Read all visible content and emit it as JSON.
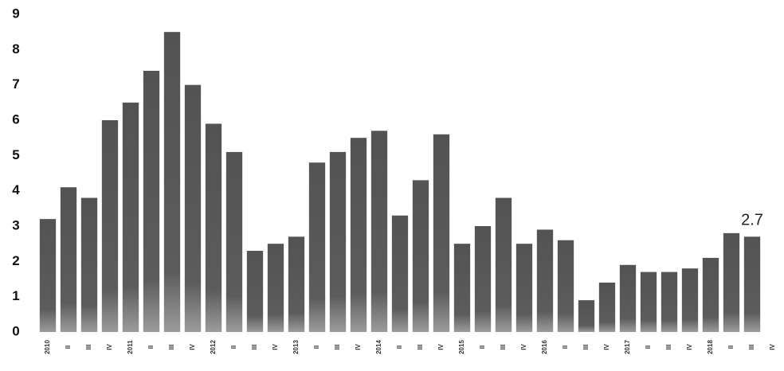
{
  "chart_data": {
    "type": "bar",
    "categories": [
      "2010",
      "II",
      "III",
      "IV",
      "2011",
      "II",
      "III",
      "IV",
      "2012",
      "II",
      "III",
      "IV",
      "2013",
      "II",
      "III",
      "IV",
      "2014",
      "II",
      "III",
      "IV",
      "2015",
      "II",
      "III",
      "IV",
      "2016",
      "II",
      "III",
      "IV",
      "2017",
      "II",
      "III",
      "IV",
      "2018",
      "II",
      "III",
      "IV"
    ],
    "values": [
      3.2,
      4.1,
      3.8,
      6.0,
      6.5,
      7.4,
      8.5,
      7.0,
      5.9,
      5.1,
      2.3,
      2.5,
      2.7,
      4.8,
      5.1,
      5.5,
      5.7,
      3.3,
      4.3,
      5.6,
      2.5,
      3.0,
      3.8,
      2.5,
      2.9,
      2.6,
      0.9,
      1.4,
      1.9,
      1.7,
      1.7,
      1.8,
      2.1,
      2.8,
      2.7,
      null
    ],
    "value_labels": [
      null,
      null,
      null,
      null,
      null,
      null,
      null,
      null,
      null,
      null,
      null,
      null,
      null,
      null,
      null,
      null,
      null,
      null,
      null,
      null,
      null,
      null,
      null,
      null,
      null,
      null,
      null,
      null,
      null,
      null,
      null,
      null,
      null,
      null,
      "2.7",
      null
    ],
    "color": "#4a4a4a",
    "ylim": [
      0,
      9
    ],
    "yticks": [
      0,
      1,
      2,
      3,
      4,
      5,
      6,
      7,
      8,
      9
    ],
    "grid": false
  }
}
